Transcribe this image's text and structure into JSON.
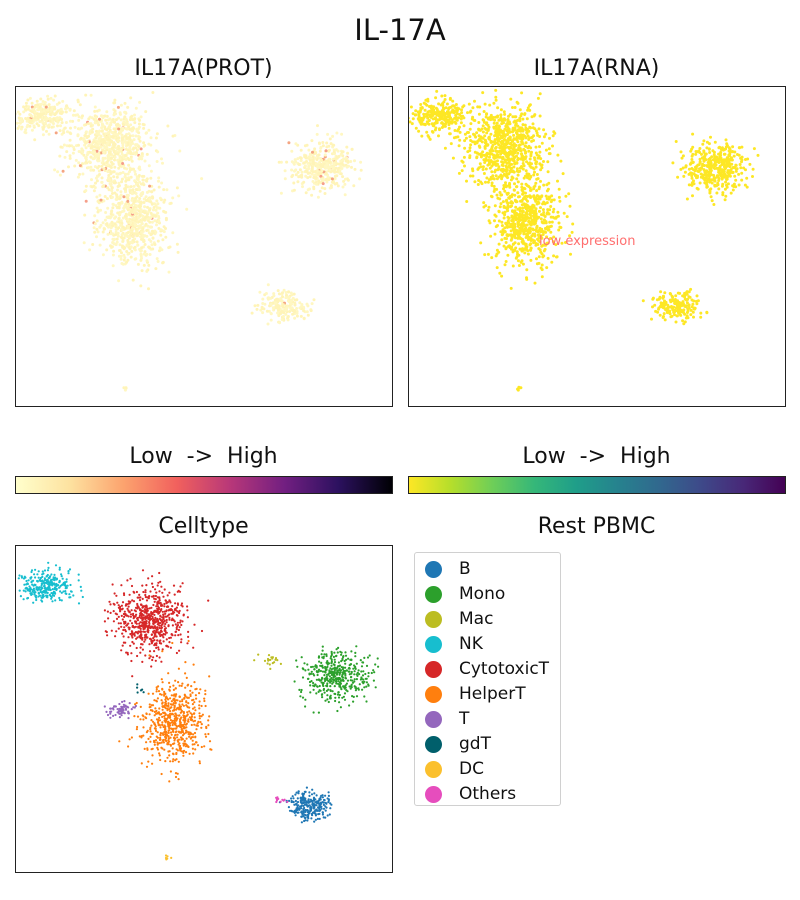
{
  "figure": {
    "title": "IL-17A"
  },
  "colorbars": [
    {
      "label": "Low  ->  High",
      "gradient": [
        "#ffffcc",
        "#fde2a0",
        "#fca36e",
        "#f1605d",
        "#b73779",
        "#721f81",
        "#2c115f",
        "#000004"
      ]
    },
    {
      "label": "Low  ->  High",
      "gradient": [
        "#fde725",
        "#b5de2b",
        "#6ece58",
        "#35b779",
        "#1f9e89",
        "#26828e",
        "#31688e",
        "#3e4989",
        "#482878",
        "#440154"
      ]
    }
  ],
  "chart_data": [
    {
      "type": "scatter",
      "title": "IL17A(PROT)",
      "xlabel": "",
      "ylabel": "",
      "colormap": "magma_r",
      "clusters": [
        {
          "cx": -8.5,
          "cy": 8.2,
          "rx": 1.4,
          "ry": 0.9,
          "n": 260
        },
        {
          "cx": -5.0,
          "cy": 6.3,
          "rx": 1.9,
          "ry": 2.3,
          "n": 700
        },
        {
          "cx": -3.8,
          "cy": 1.6,
          "rx": 1.6,
          "ry": 2.5,
          "n": 650
        },
        {
          "cx": 6.2,
          "cy": 5.0,
          "rx": 1.5,
          "ry": 1.3,
          "n": 380
        },
        {
          "cx": 4.2,
          "cy": -3.6,
          "rx": 1.1,
          "ry": 0.8,
          "n": 180
        },
        {
          "cx": -4.2,
          "cy": -8.8,
          "rx": 0.1,
          "ry": 0.1,
          "n": 6
        }
      ],
      "xlim": [
        -10,
        10
      ],
      "ylim": [
        -10,
        10
      ],
      "expression": "mostly low, few scattered high cells"
    },
    {
      "type": "scatter",
      "title": "IL17A(RNA)",
      "xlabel": "",
      "ylabel": "",
      "colormap": "viridis_r",
      "annotation": "low expression",
      "clusters": [
        {
          "cx": -8.5,
          "cy": 8.2,
          "rx": 1.4,
          "ry": 0.9,
          "n": 260
        },
        {
          "cx": -5.0,
          "cy": 6.3,
          "rx": 1.9,
          "ry": 2.3,
          "n": 700
        },
        {
          "cx": -3.8,
          "cy": 1.6,
          "rx": 1.6,
          "ry": 2.5,
          "n": 650
        },
        {
          "cx": 6.2,
          "cy": 5.0,
          "rx": 1.5,
          "ry": 1.3,
          "n": 380
        },
        {
          "cx": 4.2,
          "cy": -3.6,
          "rx": 1.1,
          "ry": 0.8,
          "n": 180
        },
        {
          "cx": -4.2,
          "cy": -8.8,
          "rx": 0.1,
          "ry": 0.1,
          "n": 6
        }
      ],
      "xlim": [
        -10,
        10
      ],
      "ylim": [
        -10,
        10
      ]
    },
    {
      "type": "scatter",
      "title": "Celltype",
      "xlabel": "",
      "ylabel": "",
      "legend_title": "Rest PBMC",
      "legend_position": "right",
      "series": [
        {
          "name": "B",
          "color": "#1f77b4",
          "cx": 5.5,
          "cy": -5.8,
          "rx": 0.9,
          "ry": 0.8,
          "n": 260
        },
        {
          "name": "Mono",
          "color": "#2ca02c",
          "cx": 7.0,
          "cy": 2.1,
          "rx": 1.6,
          "ry": 1.4,
          "n": 420
        },
        {
          "name": "Mac",
          "color": "#bcbd22",
          "cx": 3.5,
          "cy": 3.0,
          "rx": 0.5,
          "ry": 0.4,
          "n": 20
        },
        {
          "name": "NK",
          "color": "#17becf",
          "cx": -8.5,
          "cy": 7.5,
          "rx": 1.3,
          "ry": 0.8,
          "n": 300
        },
        {
          "name": "CytotoxicT",
          "color": "#d62728",
          "cx": -3.0,
          "cy": 5.5,
          "rx": 1.7,
          "ry": 1.8,
          "n": 650
        },
        {
          "name": "HelperT",
          "color": "#ff7f0e",
          "cx": -1.7,
          "cy": -0.8,
          "rx": 1.4,
          "ry": 2.3,
          "n": 620
        },
        {
          "name": "T",
          "color": "#9467bd",
          "cx": -4.5,
          "cy": 0.0,
          "rx": 0.6,
          "ry": 0.5,
          "n": 70
        },
        {
          "name": "gdT",
          "color": "#005f6b",
          "cx": -3.5,
          "cy": 1.2,
          "rx": 0.3,
          "ry": 0.3,
          "n": 6
        },
        {
          "name": "DC",
          "color": "#fbc02d",
          "cx": -2.0,
          "cy": -9.0,
          "rx": 0.1,
          "ry": 0.1,
          "n": 6
        },
        {
          "name": "Others",
          "color": "#e64dbd",
          "cx": 4.0,
          "cy": -5.5,
          "rx": 0.4,
          "ry": 0.2,
          "n": 12
        }
      ],
      "xlim": [
        -10,
        10
      ],
      "ylim": [
        -10,
        10
      ]
    }
  ]
}
